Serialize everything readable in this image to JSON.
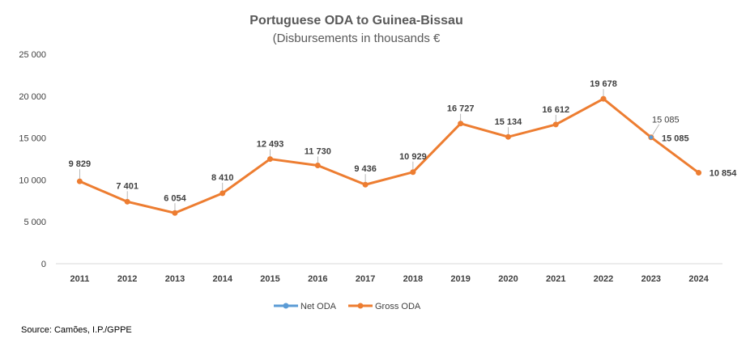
{
  "chart_data": {
    "type": "line",
    "title": "Portuguese ODA to Guinea-Bissau",
    "subtitle": "(Disbursements in thousands €",
    "categories": [
      "2011",
      "2012",
      "2013",
      "2014",
      "2015",
      "2016",
      "2017",
      "2018",
      "2019",
      "2020",
      "2021",
      "2022",
      "2023",
      "2024"
    ],
    "series": [
      {
        "name": "Net ODA",
        "color": "#5B9BD5",
        "values": [
          null,
          null,
          null,
          null,
          null,
          null,
          null,
          null,
          null,
          null,
          null,
          null,
          15085,
          null
        ],
        "labels": [
          null,
          null,
          null,
          null,
          null,
          null,
          null,
          null,
          null,
          null,
          null,
          null,
          "15 085",
          null
        ]
      },
      {
        "name": "Gross ODA",
        "color": "#ED7D31",
        "values": [
          9829,
          7401,
          6054,
          8410,
          12493,
          11730,
          9436,
          10929,
          16727,
          15134,
          16612,
          19678,
          15085,
          10854
        ],
        "labels": [
          "9 829",
          "7 401",
          "6 054",
          "8 410",
          "12 493",
          "11 730",
          "9 436",
          "10 929",
          "16 727",
          "15 134",
          "16 612",
          "19 678",
          "15 085",
          "10 854"
        ]
      }
    ],
    "ylim": [
      0,
      25000
    ],
    "yticks": [
      0,
      5000,
      10000,
      15000,
      20000,
      25000
    ],
    "ytick_labels": [
      "0",
      "5 000",
      "10 000",
      "15 000",
      "20 000",
      "25 000"
    ],
    "xlabel": "",
    "ylabel": "",
    "grid": false,
    "legend_position": "bottom"
  },
  "source": "Source: Camões, I.P./GPPE"
}
